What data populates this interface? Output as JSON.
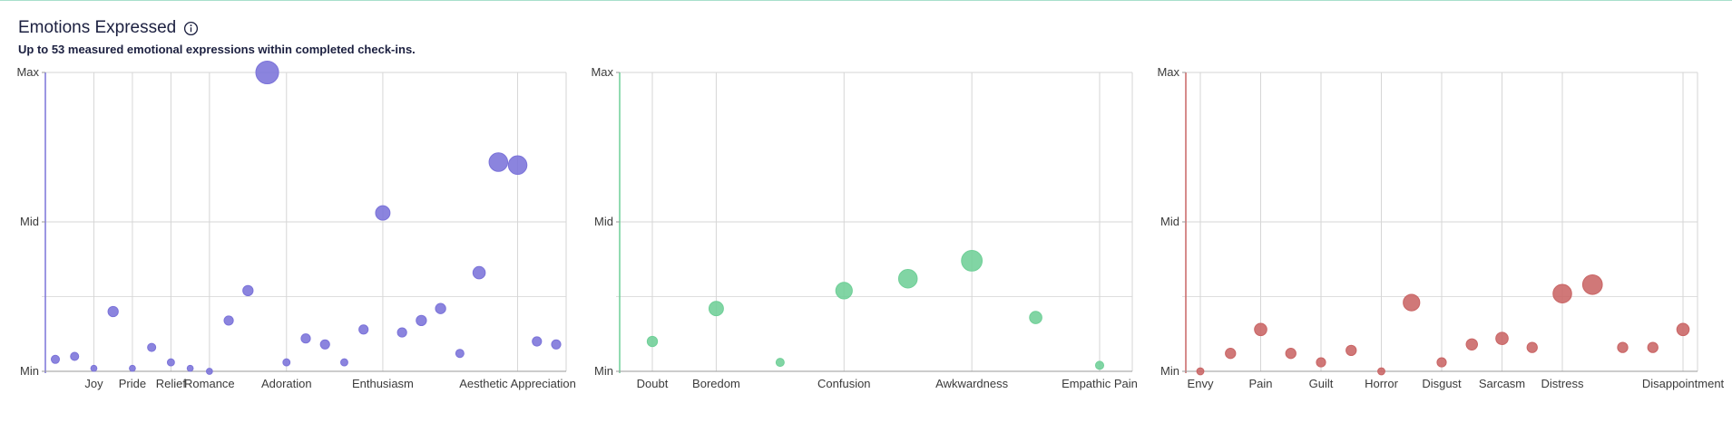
{
  "header": {
    "title": "Emotions Expressed",
    "info_icon": "info-circle-icon",
    "subtitle": "Up to 53 measured emotional expressions within completed check-ins."
  },
  "chart_data": [
    {
      "type": "scatter",
      "title": "",
      "color": "#7b73d9",
      "y_tick_labels": [
        "Min",
        "Mid",
        "Max"
      ],
      "ylim": [
        0,
        100
      ],
      "x_tick_labels": [
        "Joy",
        "Pride",
        "Relief",
        "Romance",
        "Adoration",
        "Enthusiasm",
        "Aesthetic Appreciation"
      ],
      "x_tick_index": [
        2,
        4,
        6,
        8,
        12,
        17,
        24
      ],
      "grid": true,
      "points": [
        {
          "x": 0,
          "y": 4,
          "size": 2
        },
        {
          "x": 1,
          "y": 5,
          "size": 2
        },
        {
          "x": 2,
          "y": 1,
          "size": 1
        },
        {
          "x": 3,
          "y": 20,
          "size": 3
        },
        {
          "x": 4,
          "y": 1,
          "size": 1
        },
        {
          "x": 5,
          "y": 8,
          "size": 2
        },
        {
          "x": 6,
          "y": 3,
          "size": 1.5
        },
        {
          "x": 7,
          "y": 1,
          "size": 1
        },
        {
          "x": 8,
          "y": 0,
          "size": 1
        },
        {
          "x": 9,
          "y": 17,
          "size": 2.5
        },
        {
          "x": 10,
          "y": 27,
          "size": 3
        },
        {
          "x": 11,
          "y": 100,
          "size": 9
        },
        {
          "x": 12,
          "y": 3,
          "size": 1.5
        },
        {
          "x": 13,
          "y": 11,
          "size": 2.5
        },
        {
          "x": 14,
          "y": 9,
          "size": 2.5
        },
        {
          "x": 15,
          "y": 3,
          "size": 1.5
        },
        {
          "x": 16,
          "y": 14,
          "size": 2.5
        },
        {
          "x": 17,
          "y": 53,
          "size": 5
        },
        {
          "x": 18,
          "y": 13,
          "size": 2.5
        },
        {
          "x": 19,
          "y": 17,
          "size": 3
        },
        {
          "x": 20,
          "y": 21,
          "size": 3
        },
        {
          "x": 21,
          "y": 6,
          "size": 2
        },
        {
          "x": 22,
          "y": 33,
          "size": 4
        },
        {
          "x": 23,
          "y": 70,
          "size": 7
        },
        {
          "x": 24,
          "y": 69,
          "size": 7
        },
        {
          "x": 25,
          "y": 10,
          "size": 2.5
        },
        {
          "x": 26,
          "y": 9,
          "size": 2.5
        }
      ]
    },
    {
      "type": "scatter",
      "title": "",
      "color": "#6fcf97",
      "y_tick_labels": [
        "Min",
        "Mid",
        "Max"
      ],
      "ylim": [
        0,
        100
      ],
      "x_tick_labels": [
        "Doubt",
        "Boredom",
        "Confusion",
        "Awkwardness",
        "Empathic Pain"
      ],
      "x_tick_index": [
        0,
        1,
        3,
        5,
        7
      ],
      "grid": true,
      "points": [
        {
          "x": 0,
          "y": 10,
          "size": 3
        },
        {
          "x": 1,
          "y": 21,
          "size": 5
        },
        {
          "x": 2,
          "y": 3,
          "size": 2
        },
        {
          "x": 3,
          "y": 27,
          "size": 6
        },
        {
          "x": 4,
          "y": 31,
          "size": 7
        },
        {
          "x": 5,
          "y": 37,
          "size": 8
        },
        {
          "x": 6,
          "y": 18,
          "size": 4
        },
        {
          "x": 7,
          "y": 2,
          "size": 2
        }
      ]
    },
    {
      "type": "scatter",
      "title": "",
      "color": "#c96565",
      "y_tick_labels": [
        "Min",
        "Mid",
        "Max"
      ],
      "ylim": [
        0,
        100
      ],
      "x_tick_labels": [
        "Envy",
        "Pain",
        "Guilt",
        "Horror",
        "Disgust",
        "Sarcasm",
        "Distress",
        "Disappointment"
      ],
      "x_tick_index": [
        0,
        2,
        4,
        6,
        8,
        10,
        12,
        16
      ],
      "grid": true,
      "points": [
        {
          "x": 0,
          "y": 0,
          "size": 1.5
        },
        {
          "x": 1,
          "y": 6,
          "size": 3
        },
        {
          "x": 2,
          "y": 14,
          "size": 4
        },
        {
          "x": 3,
          "y": 6,
          "size": 3
        },
        {
          "x": 4,
          "y": 3,
          "size": 2.5
        },
        {
          "x": 5,
          "y": 7,
          "size": 3
        },
        {
          "x": 6,
          "y": 0,
          "size": 1.5
        },
        {
          "x": 7,
          "y": 23,
          "size": 6
        },
        {
          "x": 8,
          "y": 3,
          "size": 2.5
        },
        {
          "x": 9,
          "y": 9,
          "size": 3.5
        },
        {
          "x": 10,
          "y": 11,
          "size": 4
        },
        {
          "x": 11,
          "y": 8,
          "size": 3
        },
        {
          "x": 12,
          "y": 26,
          "size": 7
        },
        {
          "x": 13,
          "y": 29,
          "size": 7.5
        },
        {
          "x": 14,
          "y": 8,
          "size": 3
        },
        {
          "x": 15,
          "y": 8,
          "size": 3
        },
        {
          "x": 16,
          "y": 14,
          "size": 4
        }
      ]
    }
  ]
}
